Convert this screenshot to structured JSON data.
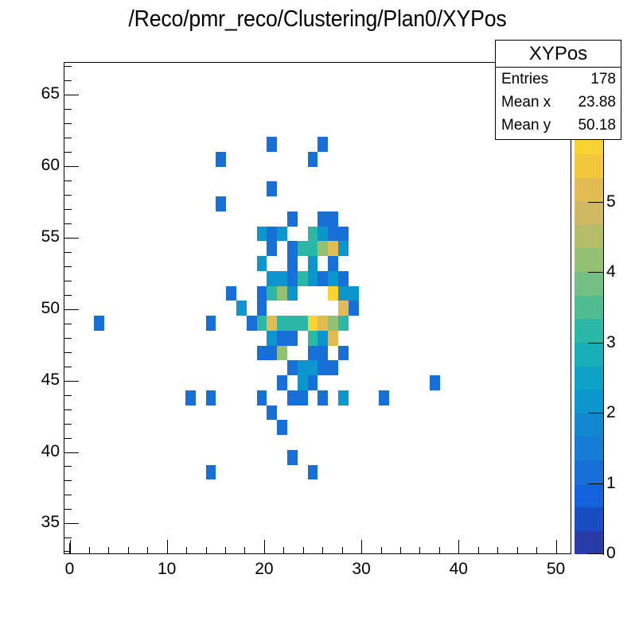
{
  "title": "/Reco/pmr_reco/Clustering/Plan0/XYPos",
  "stats": {
    "name": "XYPos",
    "rows": [
      {
        "label": "Entries",
        "value": "178"
      },
      {
        "label": "Mean x",
        "value": "23.88"
      },
      {
        "label": "Mean y",
        "value": "50.18"
      }
    ]
  },
  "axes": {
    "x": {
      "ticks": [
        "0",
        "10",
        "20",
        "30",
        "40",
        "50"
      ]
    },
    "y": {
      "ticks": [
        "35",
        "40",
        "45",
        "50",
        "55",
        "60",
        "65"
      ]
    },
    "z": {
      "ticks": [
        "0",
        "1",
        "2",
        "3",
        "4",
        "5"
      ]
    }
  },
  "palette": [
    "#2a3ca8",
    "#1a4cc6",
    "#1462dc",
    "#1670d8",
    "#187cd6",
    "#1288d0",
    "#0c96ce",
    "#0ea2c6",
    "#1aaeb8",
    "#2cb8a6",
    "#50bc92",
    "#74c084",
    "#94c074",
    "#b4bc6a",
    "#ceb862",
    "#e2bc52",
    "#f4c83c",
    "#f8d432"
  ],
  "chart_data": {
    "type": "heatmap",
    "title": "/Reco/pmr_reco/Clustering/Plan0/XYPos",
    "xlabel": "",
    "ylabel": "",
    "xlim": [
      -0.5,
      51.7
    ],
    "ylim": [
      33,
      67.4
    ],
    "zlim": [
      0,
      6
    ],
    "x_ticks": [
      0,
      10,
      20,
      30,
      40,
      50
    ],
    "y_ticks": [
      35,
      40,
      45,
      50,
      55,
      60,
      65
    ],
    "z_ticks": [
      0,
      1,
      2,
      3,
      4,
      5
    ],
    "grid": false,
    "legend": "stats box top-right: Entries 178, Mean x 23.88, Mean y 50.18",
    "bin_grid": {
      "col0_x_center": 3.0,
      "col_width": 1.045,
      "row0_y_center": 61.9,
      "row_height": 1.043
    },
    "bins": [
      {
        "col": 17,
        "row": 0,
        "value": 1
      },
      {
        "col": 22,
        "row": 0,
        "value": 1
      },
      {
        "col": 12,
        "row": 1,
        "value": 1
      },
      {
        "col": 21,
        "row": 1,
        "value": 1
      },
      {
        "col": 17,
        "row": 3,
        "value": 1
      },
      {
        "col": 12,
        "row": 4,
        "value": 1
      },
      {
        "col": 19,
        "row": 5,
        "value": 1
      },
      {
        "col": 22,
        "row": 5,
        "value": 1
      },
      {
        "col": 23,
        "row": 5,
        "value": 1
      },
      {
        "col": 16,
        "row": 6,
        "value": 2
      },
      {
        "col": 17,
        "row": 6,
        "value": 1
      },
      {
        "col": 18,
        "row": 6,
        "value": 2
      },
      {
        "col": 21,
        "row": 6,
        "value": 3
      },
      {
        "col": 22,
        "row": 6,
        "value": 2
      },
      {
        "col": 23,
        "row": 6,
        "value": 1
      },
      {
        "col": 24,
        "row": 6,
        "value": 1
      },
      {
        "col": 17,
        "row": 7,
        "value": 1
      },
      {
        "col": 19,
        "row": 7,
        "value": 1
      },
      {
        "col": 20,
        "row": 7,
        "value": 3
      },
      {
        "col": 21,
        "row": 7,
        "value": 3
      },
      {
        "col": 22,
        "row": 7,
        "value": 4
      },
      {
        "col": 23,
        "row": 7,
        "value": 5
      },
      {
        "col": 24,
        "row": 7,
        "value": 2
      },
      {
        "col": 16,
        "row": 8,
        "value": 2
      },
      {
        "col": 19,
        "row": 8,
        "value": 1
      },
      {
        "col": 21,
        "row": 8,
        "value": 2
      },
      {
        "col": 23,
        "row": 8,
        "value": 1
      },
      {
        "col": 17,
        "row": 9,
        "value": 2
      },
      {
        "col": 18,
        "row": 9,
        "value": 2
      },
      {
        "col": 19,
        "row": 9,
        "value": 1
      },
      {
        "col": 20,
        "row": 9,
        "value": 3
      },
      {
        "col": 21,
        "row": 9,
        "value": 2
      },
      {
        "col": 22,
        "row": 9,
        "value": 1
      },
      {
        "col": 23,
        "row": 9,
        "value": 2
      },
      {
        "col": 24,
        "row": 9,
        "value": 1
      },
      {
        "col": 13,
        "row": 10,
        "value": 1
      },
      {
        "col": 16,
        "row": 10,
        "value": 1
      },
      {
        "col": 17,
        "row": 10,
        "value": 3
      },
      {
        "col": 18,
        "row": 10,
        "value": 4
      },
      {
        "col": 19,
        "row": 10,
        "value": 2
      },
      {
        "col": 23,
        "row": 10,
        "value": 5.8
      },
      {
        "col": 24,
        "row": 10,
        "value": 2
      },
      {
        "col": 25,
        "row": 10,
        "value": 2
      },
      {
        "col": 14,
        "row": 11,
        "value": 2
      },
      {
        "col": 16,
        "row": 11,
        "value": 1
      },
      {
        "col": 24,
        "row": 11,
        "value": 5
      },
      {
        "col": 25,
        "row": 11,
        "value": 1
      },
      {
        "col": 0,
        "row": 12,
        "value": 1
      },
      {
        "col": 11,
        "row": 12,
        "value": 1
      },
      {
        "col": 15,
        "row": 12,
        "value": 1
      },
      {
        "col": 16,
        "row": 12,
        "value": 3
      },
      {
        "col": 17,
        "row": 12,
        "value": 5
      },
      {
        "col": 18,
        "row": 12,
        "value": 3
      },
      {
        "col": 19,
        "row": 12,
        "value": 3
      },
      {
        "col": 20,
        "row": 12,
        "value": 3
      },
      {
        "col": 21,
        "row": 12,
        "value": 6
      },
      {
        "col": 22,
        "row": 12,
        "value": 5
      },
      {
        "col": 23,
        "row": 12,
        "value": 4
      },
      {
        "col": 24,
        "row": 12,
        "value": 3
      },
      {
        "col": 17,
        "row": 13,
        "value": 2
      },
      {
        "col": 18,
        "row": 13,
        "value": 1
      },
      {
        "col": 19,
        "row": 13,
        "value": 1
      },
      {
        "col": 21,
        "row": 13,
        "value": 3
      },
      {
        "col": 22,
        "row": 13,
        "value": 2
      },
      {
        "col": 23,
        "row": 13,
        "value": 5
      },
      {
        "col": 16,
        "row": 14,
        "value": 1
      },
      {
        "col": 17,
        "row": 14,
        "value": 1
      },
      {
        "col": 18,
        "row": 14,
        "value": 4
      },
      {
        "col": 21,
        "row": 14,
        "value": 1
      },
      {
        "col": 22,
        "row": 14,
        "value": 1
      },
      {
        "col": 24,
        "row": 14,
        "value": 1
      },
      {
        "col": 19,
        "row": 15,
        "value": 1
      },
      {
        "col": 20,
        "row": 15,
        "value": 2
      },
      {
        "col": 21,
        "row": 15,
        "value": 2
      },
      {
        "col": 22,
        "row": 15,
        "value": 1
      },
      {
        "col": 23,
        "row": 15,
        "value": 1
      },
      {
        "col": 18,
        "row": 16,
        "value": 1
      },
      {
        "col": 20,
        "row": 16,
        "value": 2
      },
      {
        "col": 21,
        "row": 16,
        "value": 1
      },
      {
        "col": 33,
        "row": 16,
        "value": 1
      },
      {
        "col": 9,
        "row": 17,
        "value": 1
      },
      {
        "col": 11,
        "row": 17,
        "value": 1
      },
      {
        "col": 16,
        "row": 17,
        "value": 1
      },
      {
        "col": 19,
        "row": 17,
        "value": 1
      },
      {
        "col": 20,
        "row": 17,
        "value": 1
      },
      {
        "col": 22,
        "row": 17,
        "value": 1
      },
      {
        "col": 24,
        "row": 17,
        "value": 2
      },
      {
        "col": 28,
        "row": 17,
        "value": 1
      },
      {
        "col": 17,
        "row": 18,
        "value": 1
      },
      {
        "col": 18,
        "row": 19,
        "value": 1
      },
      {
        "col": 19,
        "row": 21,
        "value": 1
      },
      {
        "col": 11,
        "row": 22,
        "value": 1
      },
      {
        "col": 21,
        "row": 22,
        "value": 1
      }
    ]
  }
}
